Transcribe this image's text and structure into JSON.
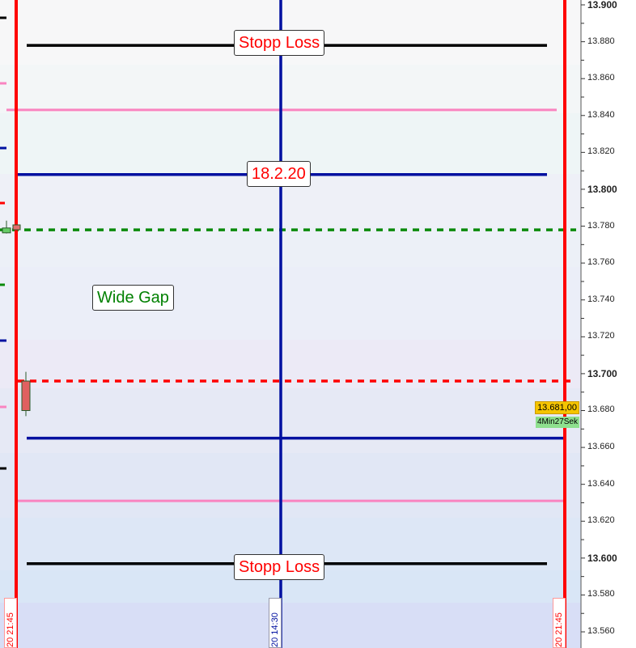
{
  "chart_data": {
    "type": "line",
    "title": "",
    "ylim": [
      13.555,
      13.902
    ],
    "y_ticks": [
      "13.900",
      "13.880",
      "13.860",
      "13.840",
      "13.820",
      "13.800",
      "13.780",
      "13.760",
      "13.740",
      "13.720",
      "13.700",
      "13.680",
      "13.660",
      "13.640",
      "13.620",
      "13.600",
      "13.580",
      "13.560"
    ],
    "bold_ticks": [
      "13.900",
      "13.800",
      "13.700",
      "13.600"
    ],
    "horizontal_lines": [
      {
        "price": 13.878,
        "color": "#000000",
        "style": "solid"
      },
      {
        "price": 13.843,
        "color": "#f984c0",
        "style": "solid"
      },
      {
        "price": 13.808,
        "color": "#0010a0",
        "style": "solid"
      },
      {
        "price": 13.778,
        "color": "#0a8a0a",
        "style": "dashed"
      },
      {
        "price": 13.696,
        "color": "#ff0000",
        "style": "dashed"
      },
      {
        "price": 13.665,
        "color": "#0010a0",
        "style": "solid"
      },
      {
        "price": 13.631,
        "color": "#f984c0",
        "style": "solid"
      },
      {
        "price": 13.597,
        "color": "#000000",
        "style": "solid"
      }
    ],
    "candles": [
      {
        "open": 13.779,
        "close": 13.778,
        "high": 13.783,
        "low": 13.776,
        "color": "#66cc66"
      },
      {
        "open": 13.696,
        "close": 13.68,
        "high": 13.701,
        "low": 13.677,
        "color": "#e06060"
      }
    ],
    "current_price": "13.681,00",
    "countdown": "4Min27Sek",
    "annotations": [
      {
        "text": "Stopp Loss",
        "color": "#ff0000"
      },
      {
        "text": "18.2.20",
        "color": "#ff0000"
      },
      {
        "text": "Wide Gap",
        "color": "#008000"
      },
      {
        "text": "Stopp Loss",
        "color": "#ff0000"
      }
    ],
    "time_labels": [
      {
        "text": "20 21:45",
        "color": "#ff0000"
      },
      {
        "text": "20 14:30",
        "color": "#0010a0"
      },
      {
        "text": "20 21:45",
        "color": "#ff0000"
      }
    ]
  }
}
